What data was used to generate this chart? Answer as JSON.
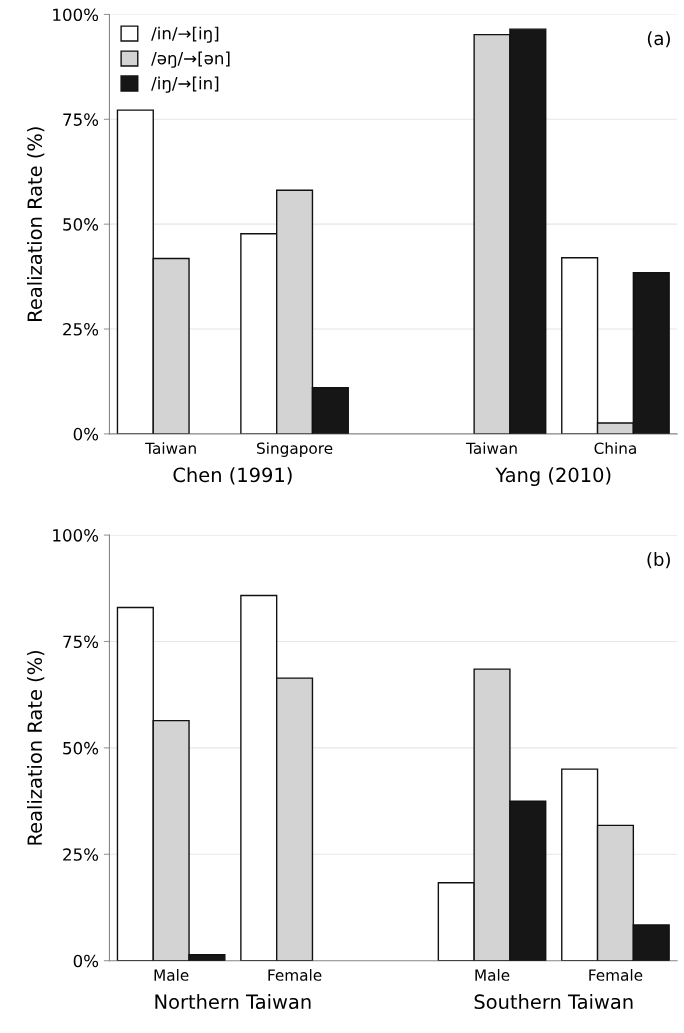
{
  "chart_data": [
    {
      "type": "bar",
      "ylabel": "Realization Rate (%)",
      "categories": [
        "Taiwan",
        "Singapore",
        null,
        "Taiwan",
        "China"
      ],
      "series": [
        {
          "name": "/in/→[iŋ]",
          "color": "#ffffff",
          "values": [
            77.2,
            47.7,
            null,
            null,
            42.0
          ]
        },
        {
          "name": "/əŋ/→[ən]",
          "color": "#d3d3d3",
          "values": [
            41.8,
            58.1,
            null,
            95.2,
            2.6
          ]
        },
        {
          "name": "/iŋ/→[in]",
          "color": "#161616",
          "values": [
            null,
            11.0,
            null,
            96.5,
            38.4
          ]
        }
      ],
      "ylim": [
        0,
        100
      ],
      "yticks": [
        {
          "value": 0,
          "label": "0%"
        },
        {
          "value": 25,
          "label": "25%"
        },
        {
          "value": 50,
          "label": "50%"
        },
        {
          "value": 75,
          "label": "75%"
        },
        {
          "value": 100,
          "label": "100%"
        }
      ],
      "grid": "y",
      "legend": "top left",
      "annotations": [
        "(a)",
        "Chen (1991)",
        "Yang (2010)"
      ]
    },
    {
      "type": "bar",
      "ylabel": "Realization Rate (%)",
      "categories": [
        "Male",
        "Female",
        null,
        "Male",
        "Female"
      ],
      "series": [
        {
          "color": "#ffffff",
          "values": [
            83.0,
            85.8,
            null,
            18.3,
            45.0
          ]
        },
        {
          "color": "#d3d3d3",
          "values": [
            56.4,
            66.4,
            null,
            68.5,
            31.8
          ]
        },
        {
          "color": "#161616",
          "values": [
            1.4,
            null,
            null,
            37.5,
            8.4
          ]
        }
      ],
      "ylim": [
        0,
        100
      ],
      "yticks": [
        {
          "value": 0,
          "label": "0%"
        },
        {
          "value": 25,
          "label": "25%"
        },
        {
          "value": 50,
          "label": "50%"
        },
        {
          "value": 75,
          "label": "75%"
        },
        {
          "value": 100,
          "label": "100%"
        }
      ],
      "grid": "y",
      "annotations": [
        "(b)",
        "Northern Taiwan",
        "Southern Taiwan"
      ]
    }
  ]
}
